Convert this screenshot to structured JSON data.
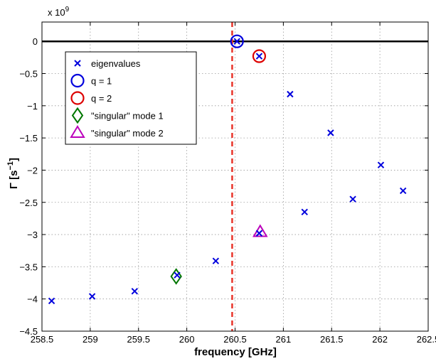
{
  "chart_data": {
    "type": "scatter",
    "title": "",
    "xlabel": "frequency [GHz]",
    "ylabel_main": "Γ [s",
    "ylabel_sup": "−1",
    "ylabel_end": "]",
    "y_multiplier": "x 10",
    "y_multiplier_exp": "9",
    "xlim": [
      258.5,
      262.5
    ],
    "ylim": [
      -4.5,
      0.3
    ],
    "grid": true,
    "legend_position": "top-left",
    "x_ticks": [
      258.5,
      259,
      259.5,
      260,
      260.5,
      261,
      261.5,
      262,
      262.5
    ],
    "x_tick_labels": [
      "258.5",
      "259",
      "259.5",
      "260",
      "260.5",
      "261",
      "261.5",
      "262",
      "262.5"
    ],
    "y_ticks": [
      0,
      -0.5,
      -1,
      -1.5,
      -2,
      -2.5,
      -3,
      -3.5,
      -4,
      -4.5
    ],
    "y_tick_labels": [
      "0",
      "−0.5",
      "−1",
      "−1.5",
      "−2",
      "−2.5",
      "−3",
      "−3.5",
      "−4",
      "−4.5"
    ],
    "hline_y": 0,
    "vline_x": 260.47,
    "series": [
      {
        "name": "eigenvalues",
        "marker": "x",
        "color": "#0000dd",
        "points": [
          [
            258.6,
            -4.03
          ],
          [
            259.02,
            -3.96
          ],
          [
            259.46,
            -3.88
          ],
          [
            259.9,
            -3.63
          ],
          [
            260.3,
            -3.41
          ],
          [
            260.52,
            0.0
          ],
          [
            260.75,
            -0.23
          ],
          [
            260.75,
            -2.98
          ],
          [
            261.07,
            -0.82
          ],
          [
            261.22,
            -2.65
          ],
          [
            261.49,
            -1.42
          ],
          [
            261.72,
            -2.45
          ],
          [
            262.01,
            -1.92
          ],
          [
            262.24,
            -2.32
          ]
        ]
      },
      {
        "name": "q = 1",
        "marker": "circle",
        "color": "#0000dd",
        "points": [
          [
            260.52,
            0.0
          ]
        ]
      },
      {
        "name": "q = 2",
        "marker": "circle",
        "color": "#dd0000",
        "points": [
          [
            260.75,
            -0.23
          ]
        ]
      },
      {
        "name": "\"singular\" mode 1",
        "marker": "diamond",
        "color": "#007700",
        "points": [
          [
            259.89,
            -3.65
          ]
        ]
      },
      {
        "name": "\"singular\" mode 2",
        "marker": "triangle",
        "color": "#bb00bb",
        "points": [
          [
            260.76,
            -2.96
          ]
        ]
      }
    ]
  }
}
